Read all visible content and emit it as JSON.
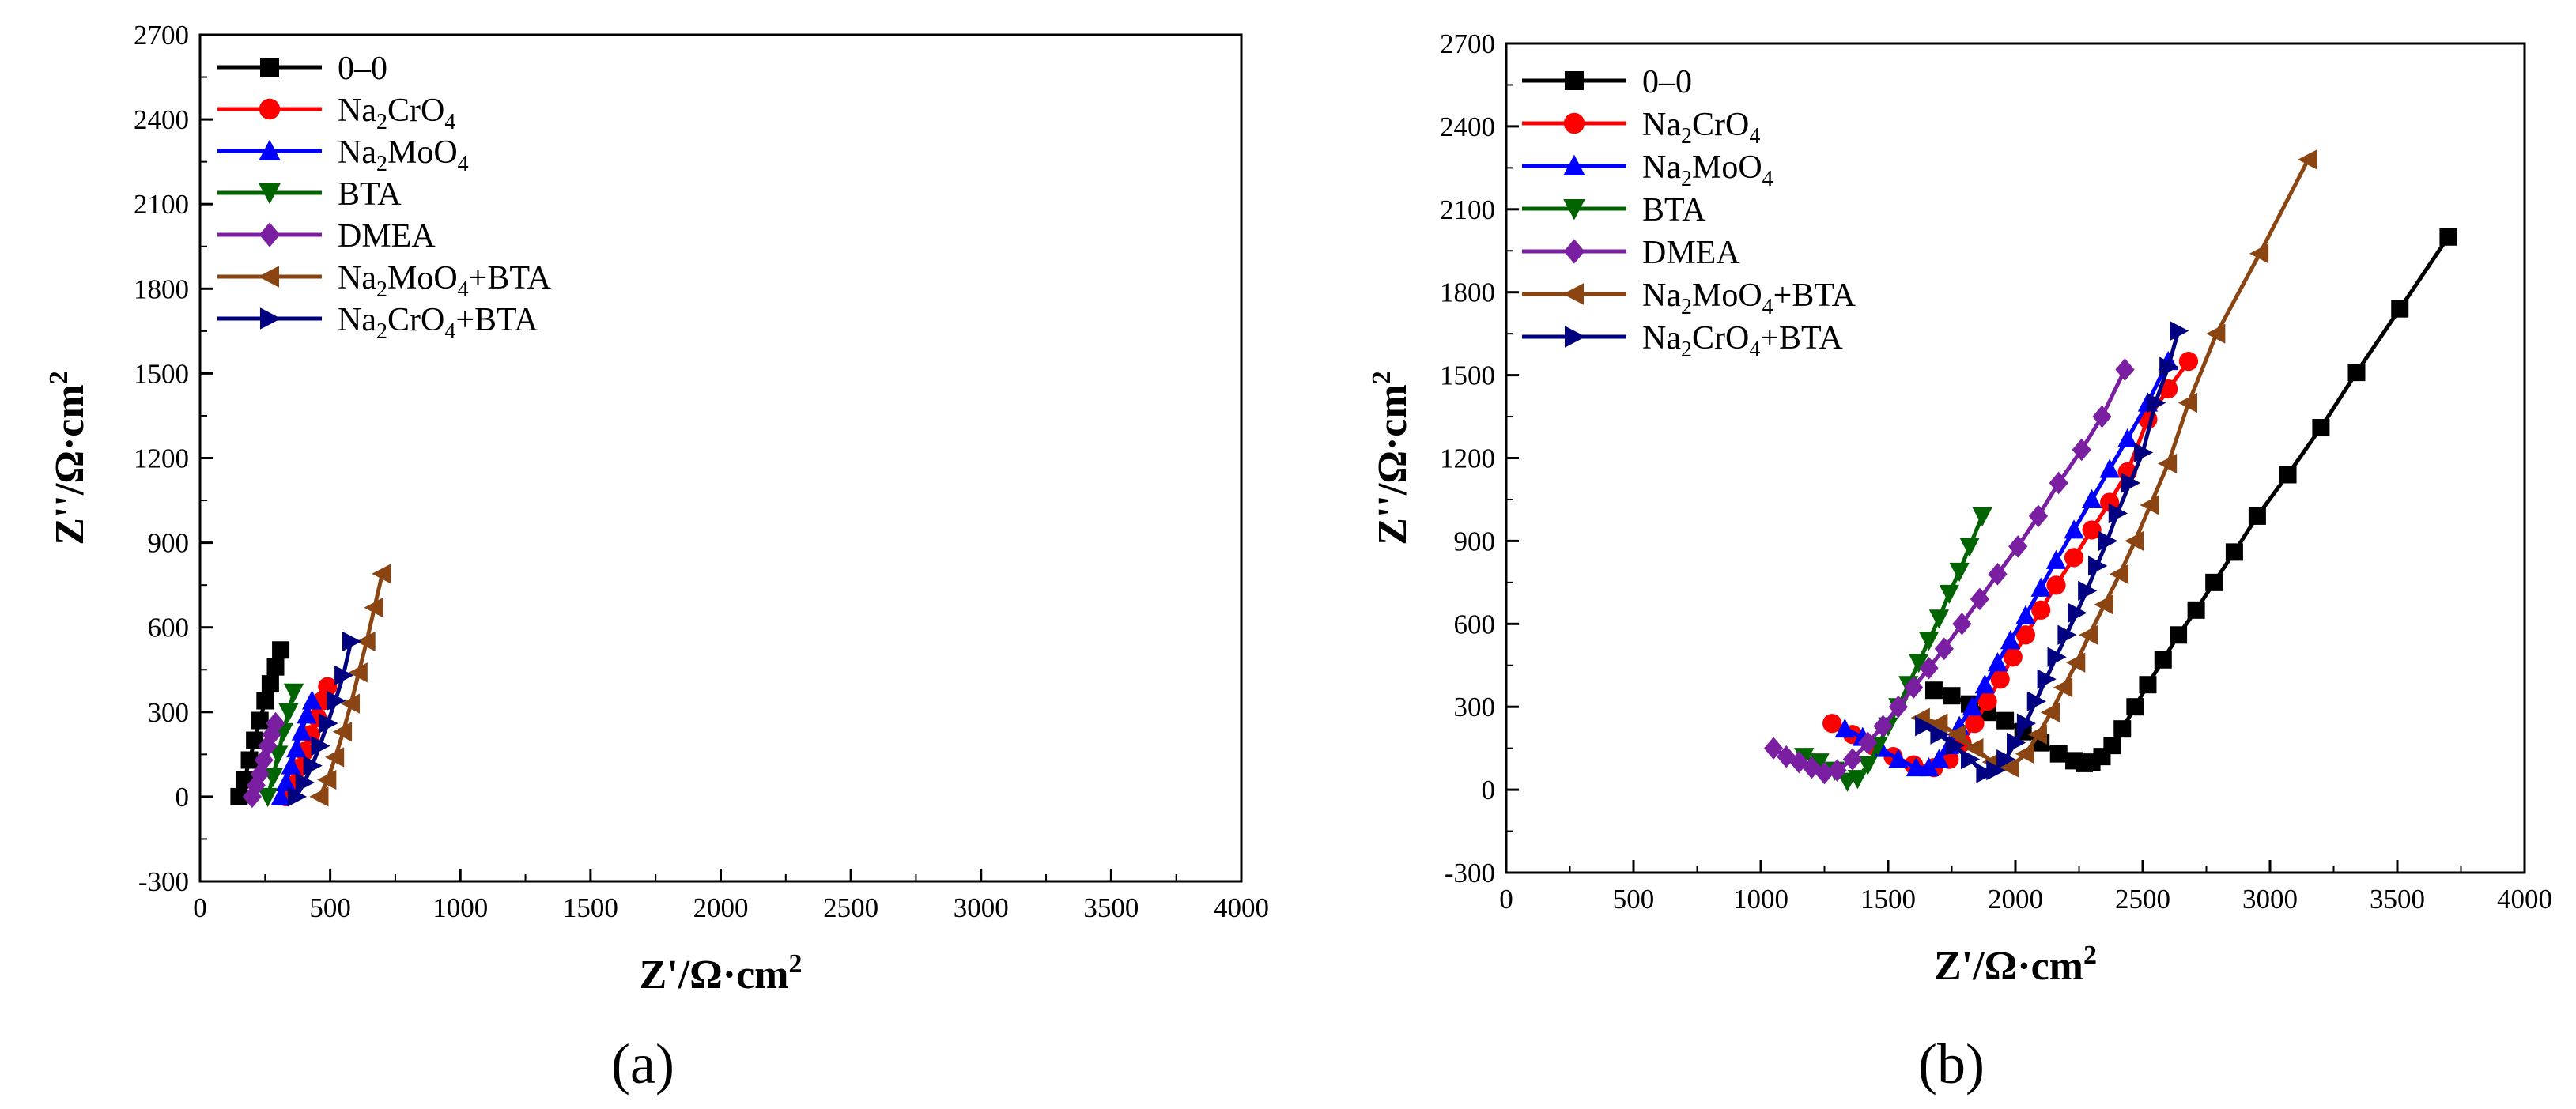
{
  "chart_data": [
    {
      "type": "scatter",
      "panel_label": "(a)",
      "xlabel": "Z'/Ω·cm2",
      "ylabel": "Z''/Ω·cm2",
      "xlim": [
        0,
        4000
      ],
      "ylim": [
        -300,
        2700
      ],
      "x_ticks": [
        0,
        500,
        1000,
        1500,
        2000,
        2500,
        3000,
        3500,
        4000
      ],
      "y_ticks": [
        -300,
        0,
        300,
        600,
        900,
        1200,
        1500,
        1800,
        2100,
        2400,
        2700
      ],
      "legend_position": "top-left",
      "series": [
        {
          "name": "0–0",
          "color": "#000000",
          "marker": "square",
          "x": [
            150,
            170,
            190,
            210,
            230,
            250,
            270,
            290,
            310
          ],
          "y": [
            0,
            60,
            130,
            200,
            270,
            340,
            400,
            460,
            520
          ]
        },
        {
          "name": "Na2CrO4",
          "color": "#ff0000",
          "marker": "circle",
          "x": [
            330,
            350,
            375,
            400,
            425,
            450,
            470,
            490
          ],
          "y": [
            0,
            40,
            100,
            160,
            220,
            280,
            340,
            390
          ]
        },
        {
          "name": "Na2MoO4",
          "color": "#0000ff",
          "marker": "triangle-up",
          "x": [
            310,
            330,
            350,
            370,
            390,
            410,
            430
          ],
          "y": [
            0,
            50,
            110,
            170,
            230,
            290,
            340
          ]
        },
        {
          "name": "BTA",
          "color": "#006400",
          "marker": "triangle-down",
          "x": [
            260,
            280,
            300,
            320,
            340,
            360
          ],
          "y": [
            0,
            70,
            150,
            230,
            300,
            370
          ]
        },
        {
          "name": "DMEA",
          "color": "#7b1fa2",
          "marker": "diamond",
          "x": [
            200,
            215,
            230,
            245,
            260,
            275,
            290
          ],
          "y": [
            0,
            40,
            80,
            130,
            180,
            220,
            260
          ]
        },
        {
          "name": "Na2MoO4+BTA",
          "color": "#8b4513",
          "marker": "triangle-left",
          "x": [
            460,
            490,
            520,
            550,
            580,
            610,
            640,
            670,
            700
          ],
          "y": [
            0,
            60,
            140,
            230,
            330,
            440,
            550,
            670,
            790
          ]
        },
        {
          "name": "Na2CrO4+BTA",
          "color": "#000080",
          "marker": "triangle-right",
          "x": [
            370,
            400,
            430,
            460,
            490,
            520,
            550,
            580
          ],
          "y": [
            0,
            50,
            110,
            180,
            260,
            340,
            430,
            550
          ]
        }
      ]
    },
    {
      "type": "scatter",
      "panel_label": "(b)",
      "xlabel": "Z'/Ω·cm2",
      "ylabel": "Z''/Ω·cm2",
      "xlim": [
        0,
        4000
      ],
      "ylim": [
        -300,
        2700
      ],
      "x_ticks": [
        0,
        500,
        1000,
        1500,
        2000,
        2500,
        3000,
        3500,
        4000
      ],
      "y_ticks": [
        -300,
        0,
        300,
        600,
        900,
        1200,
        1500,
        1800,
        2100,
        2400,
        2700
      ],
      "legend_position": "top-left",
      "series": [
        {
          "name": "0–0",
          "color": "#000000",
          "marker": "square",
          "x": [
            1680,
            1750,
            1820,
            1890,
            1960,
            2030,
            2100,
            2170,
            2230,
            2270,
            2300,
            2340,
            2380,
            2420,
            2470,
            2520,
            2580,
            2640,
            2710,
            2780,
            2860,
            2950,
            3070,
            3200,
            3340,
            3510,
            3700
          ],
          "y": [
            360,
            340,
            310,
            280,
            250,
            210,
            170,
            130,
            105,
            95,
            100,
            120,
            160,
            220,
            300,
            380,
            470,
            560,
            650,
            750,
            860,
            990,
            1140,
            1310,
            1510,
            1740,
            2000
          ]
        },
        {
          "name": "Na2CrO4",
          "color": "#ff0000",
          "marker": "circle",
          "x": [
            1280,
            1360,
            1440,
            1520,
            1600,
            1680,
            1740,
            1790,
            1840,
            1890,
            1940,
            1990,
            2040,
            2100,
            2160,
            2230,
            2300,
            2370,
            2440,
            2520,
            2600,
            2680
          ],
          "y": [
            240,
            200,
            160,
            120,
            90,
            80,
            110,
            170,
            240,
            320,
            400,
            480,
            560,
            650,
            740,
            840,
            940,
            1040,
            1150,
            1340,
            1450,
            1550
          ]
        },
        {
          "name": "Na2MoO4",
          "color": "#0000ff",
          "marker": "triangle-up",
          "x": [
            1330,
            1400,
            1470,
            1540,
            1610,
            1660,
            1700,
            1740,
            1780,
            1830,
            1880,
            1930,
            1980,
            2040,
            2100,
            2160,
            2230,
            2300,
            2370,
            2440,
            2520,
            2600
          ],
          "y": [
            220,
            190,
            150,
            110,
            80,
            80,
            110,
            160,
            230,
            300,
            380,
            460,
            540,
            630,
            730,
            830,
            940,
            1050,
            1160,
            1270,
            1400,
            1550
          ]
        },
        {
          "name": "BTA",
          "color": "#006400",
          "marker": "triangle-down",
          "x": [
            1170,
            1230,
            1290,
            1340,
            1380,
            1420,
            1460,
            1500,
            1540,
            1580,
            1620,
            1660,
            1700,
            1740,
            1780,
            1820,
            1870
          ],
          "y": [
            120,
            100,
            70,
            30,
            40,
            90,
            160,
            230,
            300,
            380,
            460,
            540,
            620,
            710,
            790,
            880,
            990
          ]
        },
        {
          "name": "DMEA",
          "color": "#7b1fa2",
          "marker": "diamond",
          "x": [
            1050,
            1100,
            1150,
            1200,
            1250,
            1300,
            1360,
            1420,
            1480,
            1540,
            1600,
            1660,
            1720,
            1790,
            1860,
            1930,
            2010,
            2090,
            2170,
            2260,
            2340,
            2430
          ],
          "y": [
            150,
            120,
            100,
            80,
            60,
            70,
            110,
            170,
            230,
            300,
            370,
            440,
            510,
            600,
            690,
            780,
            880,
            990,
            1110,
            1230,
            1350,
            1520
          ]
        },
        {
          "name": "Na2MoO4+BTA",
          "color": "#8b4513",
          "marker": "triangle-left",
          "x": [
            1630,
            1700,
            1770,
            1840,
            1910,
            1980,
            2040,
            2090,
            2140,
            2190,
            2240,
            2290,
            2350,
            2410,
            2470,
            2530,
            2600,
            2680,
            2790,
            2960,
            3150
          ],
          "y": [
            260,
            240,
            200,
            150,
            100,
            80,
            130,
            200,
            280,
            370,
            460,
            560,
            670,
            780,
            900,
            1030,
            1180,
            1400,
            1650,
            1940,
            2280
          ]
        },
        {
          "name": "Na2CrO4+BTA",
          "color": "#000080",
          "marker": "triangle-right",
          "x": [
            1640,
            1700,
            1760,
            1820,
            1880,
            1920,
            1960,
            2000,
            2040,
            2080,
            2120,
            2160,
            2200,
            2240,
            2280,
            2320,
            2360,
            2400,
            2450,
            2500,
            2550,
            2600,
            2640
          ],
          "y": [
            230,
            200,
            160,
            110,
            60,
            70,
            110,
            170,
            240,
            320,
            400,
            480,
            560,
            640,
            720,
            810,
            900,
            1000,
            1110,
            1220,
            1400,
            1530,
            1660
          ]
        }
      ]
    }
  ]
}
